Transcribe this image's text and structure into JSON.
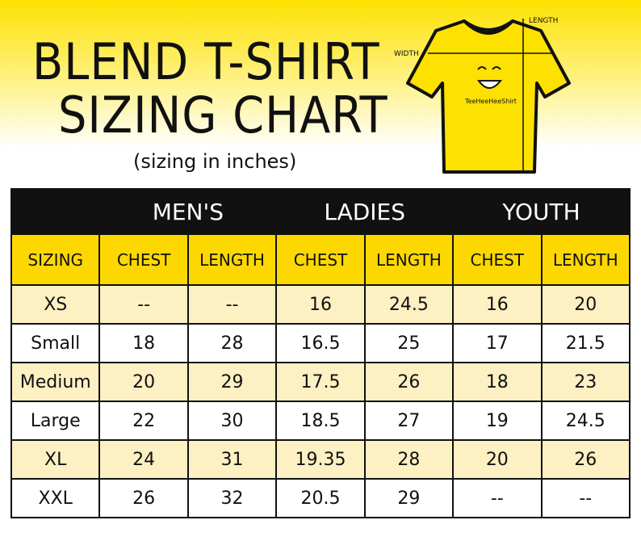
{
  "header": {
    "title_line1": "BLEND T-SHIRT",
    "title_line2": "SIZING CHART",
    "subtitle": "(sizing in inches)"
  },
  "illustration": {
    "length_label": "LENGTH",
    "width_label": "WIDTH",
    "brand": "TeeHeeHeeShirt"
  },
  "table": {
    "groups": [
      "MEN'S",
      "LADIES",
      "YOUTH"
    ],
    "columns": [
      "SIZING",
      "CHEST",
      "LENGTH",
      "CHEST",
      "LENGTH",
      "CHEST",
      "LENGTH"
    ],
    "rows": [
      [
        "XS",
        "--",
        "--",
        "16",
        "24.5",
        "16",
        "20"
      ],
      [
        "Small",
        "18",
        "28",
        "16.5",
        "25",
        "17",
        "21.5"
      ],
      [
        "Medium",
        "20",
        "29",
        "17.5",
        "26",
        "18",
        "23"
      ],
      [
        "Large",
        "22",
        "30",
        "18.5",
        "27",
        "19",
        "24.5"
      ],
      [
        "XL",
        "24",
        "31",
        "19.35",
        "28",
        "20",
        "26"
      ],
      [
        "XXL",
        "26",
        "32",
        "20.5",
        "29",
        "--",
        "--"
      ]
    ]
  }
}
